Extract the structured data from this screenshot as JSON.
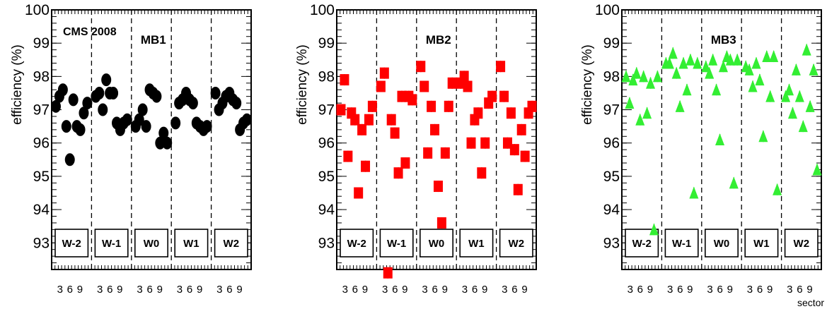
{
  "chart_data": [
    {
      "type": "scatter",
      "panel_label": "MB1",
      "annotation": "CMS 2008",
      "ylabel": "efficiency (%)",
      "xlabel": "",
      "ylim": [
        92.2,
        100
      ],
      "yticks": [
        93,
        94,
        95,
        96,
        97,
        98,
        99,
        100
      ],
      "marker": "circle",
      "color": "#000000",
      "wheels": [
        "W-2",
        "W-1",
        "W0",
        "W1",
        "W2"
      ],
      "sector_ticks": [
        "3",
        "6",
        "9"
      ],
      "values": [
        [
          97.1,
          97.4,
          97.6,
          96.5,
          95.5,
          97.3,
          96.5,
          96.4,
          96.9,
          97.2
        ],
        [
          97.4,
          97.5,
          97.0,
          97.9,
          97.5,
          97.5,
          96.6,
          96.4,
          96.6,
          96.7
        ],
        [
          96.5,
          96.7,
          97.0,
          96.5,
          97.6,
          97.5,
          97.4,
          96.0,
          96.3,
          96.0
        ],
        [
          96.6,
          97.2,
          97.3,
          97.5,
          97.3,
          97.2,
          96.6,
          96.5,
          96.4,
          96.5
        ],
        [
          97.5,
          97.0,
          97.2,
          97.4,
          97.5,
          97.3,
          97.2,
          96.4,
          96.6,
          96.7
        ]
      ]
    },
    {
      "type": "scatter",
      "panel_label": "MB2",
      "annotation": "",
      "ylabel": "efficiency (%)",
      "xlabel": "",
      "ylim": [
        92.2,
        100
      ],
      "yticks": [
        93,
        94,
        95,
        96,
        97,
        98,
        99,
        100
      ],
      "marker": "square",
      "color": "#ff0000",
      "wheels": [
        "W-2",
        "W-1",
        "W0",
        "W1",
        "W2"
      ],
      "sector_ticks": [
        "3",
        "6",
        "9"
      ],
      "values": [
        [
          97.0,
          97.9,
          95.6,
          96.9,
          96.7,
          94.5,
          96.4,
          95.3,
          96.7,
          97.1
        ],
        [
          97.7,
          98.1,
          92.1,
          96.7,
          96.3,
          95.1,
          97.4,
          95.4,
          97.4,
          97.3
        ],
        [
          98.3,
          97.7,
          95.7,
          97.1,
          96.4,
          94.7,
          93.6,
          95.7,
          97.1,
          97.8
        ],
        [
          97.8,
          98.0,
          97.7,
          96.0,
          96.7,
          96.9,
          95.1,
          96.0,
          97.2,
          97.4
        ],
        [
          98.3,
          97.4,
          96.0,
          96.9,
          95.8,
          94.6,
          96.4,
          95.6,
          96.9,
          97.1
        ]
      ]
    },
    {
      "type": "scatter",
      "panel_label": "MB3",
      "annotation": "",
      "ylabel": "efficiency (%)",
      "xlabel": "sector",
      "ylim": [
        92.2,
        100
      ],
      "yticks": [
        93,
        94,
        95,
        96,
        97,
        98,
        99,
        100
      ],
      "marker": "triangle",
      "color": "#33ee33",
      "wheels": [
        "W-2",
        "W-1",
        "W0",
        "W1",
        "W2"
      ],
      "sector_ticks": [
        "3",
        "6",
        "9"
      ],
      "values": [
        [
          98.0,
          97.2,
          97.9,
          98.1,
          96.7,
          98.0,
          96.9,
          97.8,
          93.4,
          98.0
        ],
        [
          98.4,
          98.4,
          98.7,
          98.1,
          97.1,
          98.4,
          97.6,
          98.5,
          94.5,
          98.4
        ],
        [
          98.3,
          98.1,
          98.5,
          97.6,
          96.1,
          98.3,
          98.6,
          98.5,
          94.8,
          98.5
        ],
        [
          98.3,
          98.2,
          97.7,
          98.4,
          97.9,
          96.2,
          98.6,
          97.4,
          98.6,
          94.6
        ],
        [
          97.4,
          97.6,
          96.9,
          98.2,
          97.4,
          96.5,
          98.8,
          97.1,
          98.2,
          95.2
        ]
      ]
    }
  ]
}
